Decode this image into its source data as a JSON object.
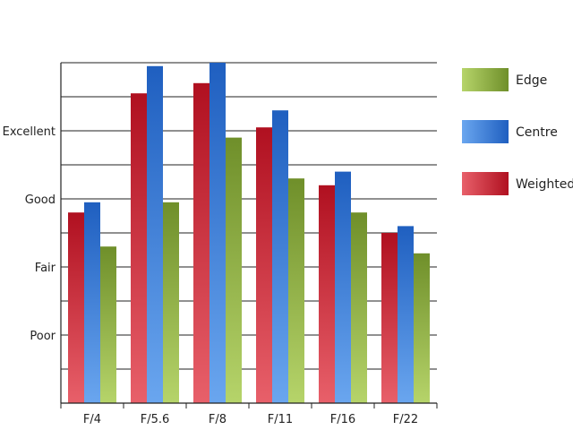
{
  "chart_data": {
    "type": "bar",
    "title": "",
    "xlabel": "",
    "ylabel": "",
    "categories": [
      "F/4",
      "F/5.6",
      "F/8",
      "F/11",
      "F/16",
      "F/22"
    ],
    "y_tick_labels": [
      {
        "label": "Poor",
        "value": 2
      },
      {
        "label": "Fair",
        "value": 4
      },
      {
        "label": "Good",
        "value": 6
      },
      {
        "label": "Excellent",
        "value": 8
      }
    ],
    "ylim": [
      0,
      10
    ],
    "grid": true,
    "legend_position": "right",
    "series": [
      {
        "name": "Weighted",
        "values": [
          5.6,
          9.1,
          9.4,
          8.1,
          6.4,
          5.0
        ],
        "color_top": "#b01020",
        "color_bottom": "#e8606a"
      },
      {
        "name": "Centre",
        "values": [
          5.9,
          9.9,
          10.0,
          8.6,
          6.8,
          5.2
        ],
        "color_top": "#1f5fc0",
        "color_bottom": "#6aa6ef"
      },
      {
        "name": "Edge",
        "values": [
          4.6,
          5.9,
          7.8,
          6.6,
          5.6,
          4.4
        ],
        "color_top": "#6f8f2a",
        "color_bottom": "#b6d46a"
      }
    ],
    "legend_order": [
      "Edge",
      "Centre",
      "Weighted"
    ]
  }
}
